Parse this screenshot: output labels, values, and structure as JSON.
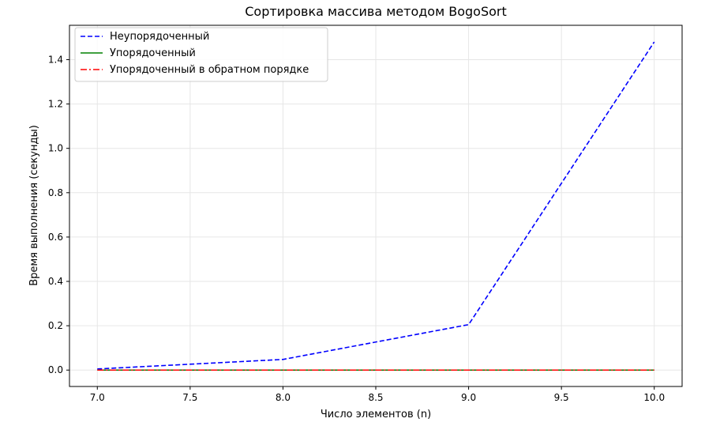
{
  "chart_data": {
    "type": "line",
    "title": "Сортировка массива методом BogoSort",
    "xlabel": "Число элементов (n)",
    "ylabel": "Время выполнения (секунды)",
    "xlim": [
      6.85,
      10.15
    ],
    "ylim": [
      -0.074,
      1.555
    ],
    "xticks": [
      "7.0",
      "7.5",
      "8.0",
      "8.5",
      "9.0",
      "9.5",
      "10.0"
    ],
    "yticks": [
      "0.0",
      "0.2",
      "0.4",
      "0.6",
      "0.8",
      "1.0",
      "1.2",
      "1.4"
    ],
    "grid": true,
    "legend_position": "top-left",
    "x": [
      7,
      8,
      9,
      10
    ],
    "series": [
      {
        "name": "Неупорядоченный",
        "values": [
          0.005,
          0.048,
          0.205,
          1.48
        ],
        "color": "#0000ff",
        "style": "dashed"
      },
      {
        "name": "Упорядоченный",
        "values": [
          0.0,
          0.0,
          0.0,
          0.0
        ],
        "color": "#008000",
        "style": "solid"
      },
      {
        "name": "Упорядоченный в обратном порядке",
        "values": [
          0.0,
          0.0,
          0.0,
          0.0
        ],
        "color": "#ff0000",
        "style": "dashdot"
      }
    ]
  }
}
